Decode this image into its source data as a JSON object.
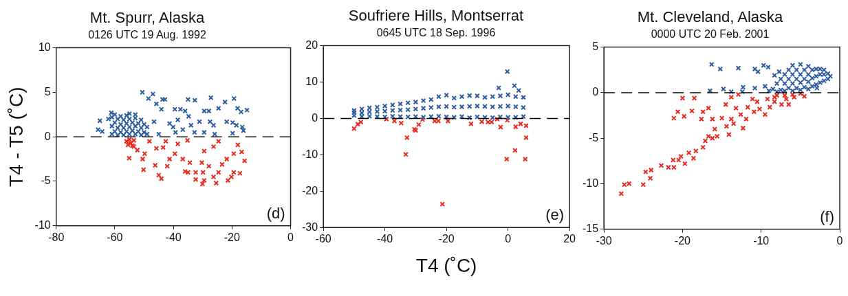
{
  "chart_data": [
    {
      "type": "scatter",
      "title": "Mt. Spurr, Alaska",
      "subtitle": "0126 UTC 19 Aug. 1992",
      "ylabel": "T4 - T5 (˚C)",
      "xlim": [
        -80,
        0
      ],
      "xticks": [
        -80,
        -60,
        -40,
        -20,
        0
      ],
      "ylim": [
        -10,
        10
      ],
      "yticks": [
        -10,
        -5,
        0,
        5,
        10
      ],
      "marker": "cross",
      "grid": false,
      "annotations": [
        "(d)"
      ],
      "ref_lines": [
        {
          "axis": "y",
          "value": 0,
          "color": "#000000",
          "line_style": "dashed"
        }
      ],
      "series": [
        {
          "color": "#2b5d9e",
          "x": [
            -61,
            -61,
            -61,
            -60,
            -60,
            -60,
            -59,
            -59,
            -59,
            -58,
            -58,
            -58,
            -57,
            -57,
            -57,
            -56,
            -56,
            -56,
            -55,
            -55,
            -55,
            -54,
            -54,
            -53,
            -53,
            -53,
            -52,
            -52,
            -51,
            -51,
            -51,
            -50,
            -50,
            -49,
            -49,
            -53,
            -55,
            -50.6,
            -47,
            -48.5,
            -45.8,
            -43.7,
            -42.9,
            -35,
            -32.7,
            -27.2,
            -22.4,
            -19.3,
            -14.9,
            -39.5,
            -37.6,
            -36,
            -29.5,
            -27.9,
            -24.6,
            -18.1,
            -16.9,
            -44.1,
            -41.3,
            -38.5,
            -34.8,
            -31.1,
            -27.5,
            -26.3,
            -21.8,
            -19.8,
            -18.5,
            -16.5,
            -16.1,
            -46.6,
            -45,
            -39.3,
            -36.8,
            -32.8,
            -29.5,
            -25.9,
            -19.8,
            -40.1,
            -34,
            -65.1,
            -65.7,
            -64.3,
            -62.2,
            -61.2
          ],
          "values": [
            0.3,
            1.2,
            2.2,
            0.6,
            1.6,
            2.5,
            0.2,
            1.0,
            2.0,
            0.5,
            1.4,
            2.3,
            0.2,
            1.0,
            1.9,
            0.6,
            1.5,
            2.4,
            0.3,
            1.1,
            2.0,
            0.7,
            1.6,
            0.3,
            1.2,
            2.1,
            0.6,
            1.5,
            0.2,
            1.0,
            1.9,
            0.5,
            1.4,
            0.3,
            1.1,
            2.5,
            2.6,
            5.0,
            4.8,
            4.3,
            3.7,
            4.2,
            4.2,
            4.2,
            4.1,
            4.4,
            3.9,
            4.3,
            3.0,
            3.1,
            3.1,
            2.9,
            2.9,
            2.9,
            3.2,
            3.2,
            2.8,
            3.1,
            1.5,
            1.9,
            2.3,
            1.7,
            1.7,
            1.3,
            1.7,
            1.6,
            1.3,
            1.1,
            0.7,
            1.7,
            0.3,
            0.5,
            0.8,
            0.5,
            0.5,
            0.3,
            0.4,
            1.1,
            1.3,
            1.8,
            0.8,
            0.6,
            2.0,
            2.7
          ]
        },
        {
          "color": "#e8281e",
          "x": [
            -56,
            -55.5,
            -55,
            -54.5,
            -54,
            -53.5,
            -55.1,
            -50.2,
            -50.5,
            -46.2,
            -45,
            -44.1,
            -42.1,
            -41.3,
            -45.8,
            -43.5,
            -39.5,
            -36.8,
            -36,
            -35,
            -34.4,
            -32.4,
            -32.4,
            -30.3,
            -29.9,
            -29.5,
            -30.1,
            -27.9,
            -26.3,
            -25.4,
            -24.6,
            -23.4,
            -21.8,
            -21.4,
            -20.2,
            -19.4,
            -17.3,
            -16.7,
            -15.7,
            -19.4,
            -18,
            -29.5,
            -26.3,
            -35.2,
            -38.5,
            -42.6,
            -48.2,
            -49.8,
            -52.3,
            -53.5,
            -24.6
          ],
          "values": [
            -0.5,
            -0.9,
            -0.3,
            -0.7,
            -1.0,
            -0.4,
            -2.4,
            -3.7,
            -2.5,
            -3.2,
            -4.3,
            -4.7,
            -3.3,
            -2.5,
            -1.3,
            -1.2,
            -1.9,
            -2.5,
            -3.9,
            -4.0,
            -2.9,
            -4.0,
            -4.8,
            -2.9,
            -4.0,
            -4.9,
            -5.3,
            -3.3,
            -4.5,
            -5.2,
            -4.0,
            -3.1,
            -2.5,
            -4.9,
            -4.5,
            -4.0,
            -4.1,
            -1.7,
            -2.7,
            -1.9,
            -0.9,
            -1.6,
            -1.1,
            -0.4,
            -0.8,
            -0.5,
            -0.5,
            -1.9,
            -1.5,
            -1.1,
            -0.5
          ]
        }
      ]
    },
    {
      "type": "scatter",
      "title": "Soufriere Hills, Montserrat",
      "subtitle": "0645 UTC 18 Sep. 1996",
      "xlabel": "T4 (˚C)",
      "xlim": [
        -60,
        20
      ],
      "xticks": [
        -60,
        -40,
        -20,
        0,
        20
      ],
      "ylim": [
        -30,
        20
      ],
      "yticks": [
        -30,
        -20,
        -10,
        0,
        10,
        20
      ],
      "marker": "cross",
      "grid": false,
      "annotations": [
        "(e)"
      ],
      "ref_lines": [
        {
          "axis": "y",
          "value": 0,
          "color": "#000000",
          "line_style": "dashed"
        }
      ],
      "series": [
        {
          "color": "#2b5d9e",
          "x": [
            -50,
            -50,
            -50,
            -47.5,
            -47.5,
            -47.5,
            -45,
            -45,
            -45,
            -42.5,
            -42.5,
            -42.5,
            -40,
            -40,
            -40,
            -37.5,
            -37.5,
            -37.5,
            -35,
            -35,
            -35,
            -32.5,
            -32.5,
            -32.5,
            -30,
            -30,
            -30,
            -27.5,
            -27.5,
            -27.5,
            -25,
            -25,
            -25,
            -22.5,
            -22.5,
            -22.5,
            -20,
            -20,
            -20,
            -17.5,
            -17.5,
            -17.5,
            -15,
            -15,
            -15,
            -12.5,
            -12.5,
            -12.5,
            -10,
            -10,
            -10,
            -7.5,
            -7.5,
            -7.5,
            -5,
            -5,
            -5,
            -2.5,
            -2.5,
            -2.5,
            0,
            0,
            0,
            2.5,
            2.5,
            2.5,
            5,
            5,
            5,
            -0.2,
            -3,
            2.1,
            3.5
          ],
          "values": [
            0.8,
            1.6,
            2.2,
            0.5,
            1.5,
            2.6,
            0.6,
            1.8,
            2.9,
            0.5,
            1.9,
            3.1,
            0.4,
            2.0,
            3.4,
            0.6,
            2.2,
            3.7,
            0.5,
            2.3,
            4.0,
            0.4,
            2.4,
            4.3,
            0.5,
            2.6,
            4.5,
            0.3,
            2.8,
            4.9,
            0.5,
            3.0,
            5.2,
            0.6,
            3.2,
            6.0,
            0.4,
            3.3,
            6.4,
            0.3,
            3.1,
            5.6,
            0.5,
            3.2,
            6.0,
            0.2,
            3.3,
            6.3,
            0.4,
            3.4,
            6.2,
            0.3,
            3.3,
            5.8,
            0.2,
            3.2,
            6.0,
            0.4,
            3.3,
            6.2,
            0.3,
            3.4,
            6.5,
            0.3,
            3.2,
            6.0,
            0.5,
            3.0,
            5.8,
            12.9,
            8.4,
            9.0,
            7.7
          ]
        },
        {
          "color": "#e8281e",
          "x": [
            -50,
            -48.8,
            -47.8,
            -39.5,
            -36.9,
            -34.7,
            -32.8,
            -33.2,
            -30.4,
            -30,
            -29,
            -27.8,
            -23.8,
            -22.6,
            -21.3,
            -19.5,
            -12,
            -8.5,
            -6.5,
            -5.3,
            -3.5,
            -2.4,
            -0.4,
            -0.2,
            2.3,
            2.5,
            4.1,
            5.9,
            5.9,
            5.6
          ],
          "values": [
            -2.8,
            -1.6,
            -1.0,
            -0.2,
            -0.7,
            -1.3,
            -5.3,
            -9.9,
            -3.0,
            -3.3,
            -1.7,
            -0.3,
            -0.7,
            -0.7,
            -23.6,
            -0.7,
            -1.5,
            -0.9,
            -1.0,
            -1.0,
            -0.2,
            -2.4,
            -11.2,
            -0.5,
            -8.8,
            -2.3,
            -1.5,
            -2.0,
            -5.3,
            -11.2
          ]
        }
      ]
    },
    {
      "type": "scatter",
      "title": "Mt. Cleveland, Alaska",
      "subtitle": "0000 UTC 20 Feb. 2001",
      "xlim": [
        -30,
        0
      ],
      "xticks": [
        -30,
        -20,
        -10,
        0
      ],
      "ylim": [
        -15,
        5
      ],
      "yticks": [
        -15,
        -10,
        -5,
        0,
        5
      ],
      "marker": "cross",
      "grid": false,
      "annotations": [
        "(f)"
      ],
      "ref_lines": [
        {
          "axis": "y",
          "value": 0,
          "color": "#000000",
          "line_style": "dashed"
        }
      ],
      "series": [
        {
          "color": "#2b5d9e",
          "x": [
            -9,
            -8.5,
            -8,
            -8,
            -7.5,
            -7.5,
            -7,
            -7,
            -7,
            -6.5,
            -6.5,
            -6.5,
            -6,
            -6,
            -6,
            -6,
            -5.5,
            -5.5,
            -5.5,
            -5,
            -5,
            -5,
            -5,
            -4.5,
            -4.5,
            -4.5,
            -4,
            -4,
            -4,
            -4,
            -3.5,
            -3.5,
            -3.5,
            -3,
            -3,
            -3,
            -2.5,
            -2.5,
            -2.5,
            -2,
            -2,
            -2,
            -1.5,
            -1.5,
            -1.2,
            -16.3,
            -15.2,
            -12.9,
            -10.8,
            -10.4,
            -9.7,
            -9.1,
            -16.5,
            -14.8,
            -13.8,
            -12.3,
            -12.4,
            -10.8,
            -9.5,
            -2.9,
            -8.3,
            -7.7
          ],
          "values": [
            0.2,
            0.4,
            0.1,
            1.0,
            0.3,
            1.5,
            0.2,
            1.0,
            2.0,
            0.5,
            1.5,
            2.5,
            0.2,
            1.0,
            2.0,
            3.0,
            0.5,
            1.5,
            2.5,
            0.3,
            1.1,
            2.0,
            3.1,
            0.6,
            1.5,
            2.5,
            0.4,
            1.2,
            2.0,
            2.9,
            0.7,
            1.6,
            2.5,
            0.9,
            1.8,
            2.6,
            1.1,
            2.0,
            2.6,
            1.3,
            2.0,
            2.5,
            1.5,
            2.1,
            1.8,
            3.1,
            2.6,
            2.7,
            2.6,
            2.3,
            3.0,
            2.8,
            0.2,
            0.4,
            0.1,
            0.6,
            0.1,
            0.5,
            0.7,
            0.5,
            1.9,
            2.3
          ]
        },
        {
          "color": "#e8281e",
          "x": [
            -7,
            -6,
            -5,
            -4.5,
            -8,
            -27.8,
            -27.4,
            -26.8,
            -25,
            -24.7,
            -24,
            -24.1,
            -22.7,
            -21.8,
            -21.1,
            -21.2,
            -20.5,
            -19.7,
            -20.2,
            -19.2,
            -18.6,
            -18.3,
            -17.4,
            -17.1,
            -16.7,
            -16.2,
            -15.6,
            -15.9,
            -16.2,
            -17.4,
            -16.7,
            -18.5,
            -20,
            -21.1,
            -20.6,
            -19.8,
            -18.8,
            -17.6,
            -15,
            -14.5,
            -14.1,
            -14.4,
            -13.8,
            -13.2,
            -13.8,
            -12.6,
            -12.3,
            -11.7,
            -11.1,
            -10.9,
            -10.2,
            -9.5,
            -8.9,
            -8.3,
            -7.4,
            -6.8,
            -5.8,
            -8.3,
            -9.2,
            -10.5,
            -11.9,
            -13.5,
            -12.9,
            -6.5
          ],
          "values": [
            -0.3,
            -0.2,
            -0.1,
            -0.4,
            -0.3,
            -11.1,
            -10.1,
            -10.0,
            -10.1,
            -8.7,
            -8.5,
            -9.4,
            -8.0,
            -8.2,
            -8.2,
            -7.4,
            -7.4,
            -7.8,
            -7.0,
            -6.6,
            -7.2,
            -6.4,
            -6.0,
            -5.3,
            -4.8,
            -5.0,
            -4.8,
            -4.0,
            -2.9,
            -2.1,
            -1.7,
            -0.6,
            -0.6,
            -2.8,
            -2.1,
            -2.6,
            -2.0,
            -2.9,
            -2.8,
            -1.3,
            -4.6,
            -3.7,
            -2.9,
            -1.7,
            -0.5,
            -2.4,
            -3.9,
            -1.6,
            -0.7,
            -2.1,
            -1.8,
            -2.4,
            -1.6,
            -1.0,
            -1.3,
            -0.7,
            -0.5,
            -0.5,
            -0.7,
            -1.0,
            -2.9,
            -3.4,
            -0.2,
            -1.3
          ]
        }
      ]
    }
  ]
}
